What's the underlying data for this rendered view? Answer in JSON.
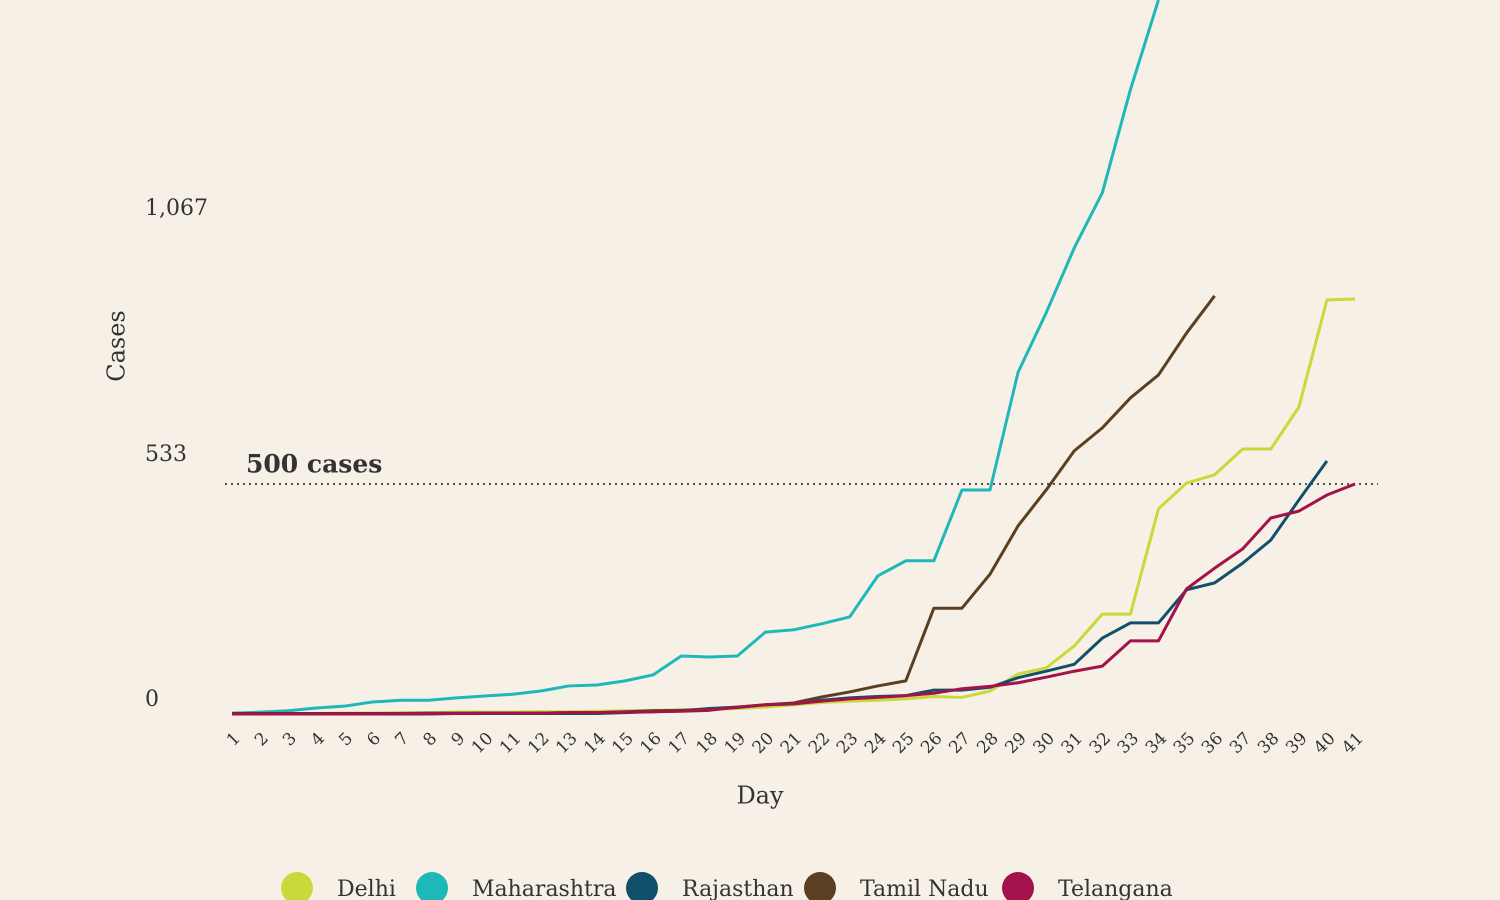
{
  "chart_data": {
    "type": "line",
    "xlabel": "Day",
    "ylabel": "Cases",
    "x": [
      1,
      2,
      3,
      4,
      5,
      6,
      7,
      8,
      9,
      10,
      11,
      12,
      13,
      14,
      15,
      16,
      17,
      18,
      19,
      20,
      21,
      22,
      23,
      24,
      25,
      26,
      27,
      28,
      29,
      30,
      31,
      32,
      33,
      34,
      35,
      36,
      37,
      38,
      39,
      40,
      41
    ],
    "xlim": [
      1,
      41
    ],
    "ylim": [
      0,
      1552
    ],
    "yticks": [
      0,
      533,
      {
        "value": 1067,
        "label": "1,067"
      }
    ],
    "annotations": [
      {
        "value": 500,
        "label": "500 cases"
      }
    ],
    "series": [
      {
        "name": "Delhi",
        "color": "#c9d93a",
        "values": [
          1,
          1,
          1,
          1,
          2,
          2,
          3,
          3,
          4,
          4,
          4,
          5,
          5,
          6,
          7,
          8,
          9,
          10,
          12,
          15,
          20,
          25,
          28,
          30,
          33,
          38,
          36,
          50,
          87,
          100,
          148,
          217,
          217,
          446,
          502,
          520,
          576,
          576,
          667,
          900,
          902
        ]
      },
      {
        "name": "Maharashtra",
        "color": "#1fb8b8",
        "values": [
          2,
          4,
          7,
          13,
          17,
          26,
          30,
          30,
          35,
          39,
          43,
          50,
          61,
          63,
          72,
          85,
          126,
          124,
          126,
          178,
          183,
          196,
          211,
          300,
          333,
          333,
          487,
          487,
          743,
          872,
          1013,
          1133,
          1357,
          1552,
          null,
          null,
          null,
          null,
          null,
          null,
          null
        ]
      },
      {
        "name": "Rajasthan",
        "color": "#124f6b",
        "values": [
          0,
          0,
          0,
          0,
          0,
          0,
          0,
          0,
          1,
          1,
          1,
          1,
          1,
          1,
          3,
          5,
          7,
          12,
          15,
          20,
          22,
          30,
          35,
          38,
          40,
          52,
          52,
          58,
          79,
          93,
          108,
          165,
          198,
          198,
          270,
          285,
          328,
          378,
          465,
          550,
          null
        ]
      },
      {
        "name": "Tamil Nadu",
        "color": "#5a3f22",
        "values": [
          1,
          1,
          1,
          1,
          1,
          1,
          1,
          2,
          2,
          2,
          2,
          2,
          3,
          3,
          5,
          7,
          8,
          10,
          14,
          20,
          24,
          37,
          48,
          61,
          72,
          230,
          230,
          304,
          409,
          487,
          572,
          622,
          687,
          737,
          828,
          909,
          null,
          null,
          null,
          null,
          null
        ]
      },
      {
        "name": "Telangana",
        "color": "#a3124a",
        "values": [
          0,
          0,
          0,
          0,
          0,
          0,
          1,
          1,
          1,
          2,
          2,
          2,
          3,
          3,
          4,
          5,
          6,
          8,
          15,
          20,
          22,
          28,
          33,
          36,
          40,
          45,
          55,
          60,
          68,
          80,
          93,
          104,
          159,
          159,
          272,
          317,
          359,
          426,
          441,
          476,
          500
        ]
      }
    ]
  }
}
